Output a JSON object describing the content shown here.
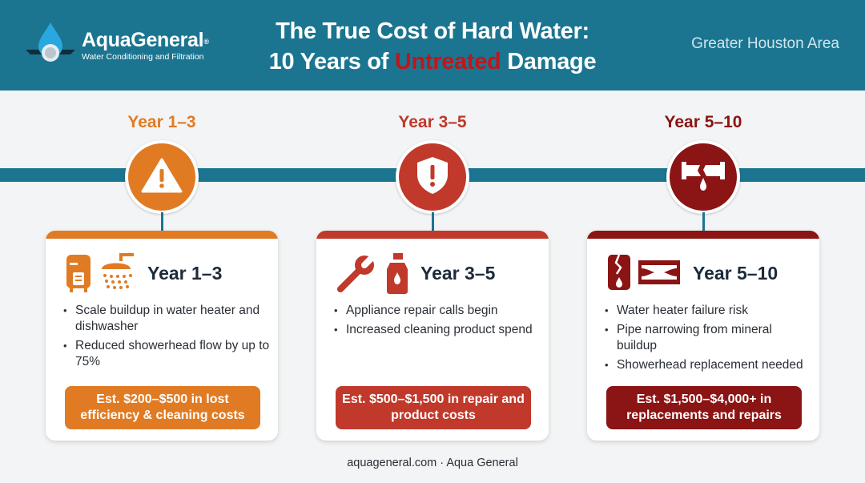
{
  "header": {
    "brand_name": "AquaGeneral",
    "brand_mark": "®",
    "brand_tagline": "Water Conditioning and Filtration",
    "title_line1": "The True Cost of Hard Water:",
    "title_line2_pre": "10 Years of ",
    "title_line2_highlight": "Untreated",
    "title_line2_post": " Damage",
    "region": "Greater Houston Area"
  },
  "colors": {
    "header_bg": "#1b7590",
    "stage1": "#e07b24",
    "stage2": "#c0392b",
    "stage3": "#8b1414",
    "highlight": "#c0161a"
  },
  "stages": [
    {
      "label": "Year 1–3",
      "icon": "warning-triangle-icon",
      "card_title": "Year 1–3",
      "card_icons": [
        "water-heater-icon",
        "showerhead-icon"
      ],
      "bullets": [
        "Scale buildup in water heater and dishwasher",
        "Reduced showerhead flow by up to 75%"
      ],
      "cost": "Est. $200–$500 in lost efficiency & cleaning costs"
    },
    {
      "label": "Year 3–5",
      "icon": "shield-alert-icon",
      "card_title": "Year 3–5",
      "card_icons": [
        "wrench-icon",
        "cleaning-bottle-icon"
      ],
      "bullets": [
        "Appliance repair calls begin",
        "Increased cleaning product spend"
      ],
      "cost": "Est. $500–$1,500 in repair and product costs"
    },
    {
      "label": "Year 5–10",
      "icon": "broken-pipe-icon",
      "card_title": "Year 5–10",
      "card_icons": [
        "broken-heater-icon",
        "narrowed-pipe-icon"
      ],
      "bullets": [
        "Water heater failure risk",
        "Pipe narrowing from mineral buildup",
        "Showerhead replacement needed"
      ],
      "cost": "Est. $1,500–$4,000+ in replacements and repairs"
    }
  ],
  "footer": "aquageneral.com · Aqua General"
}
